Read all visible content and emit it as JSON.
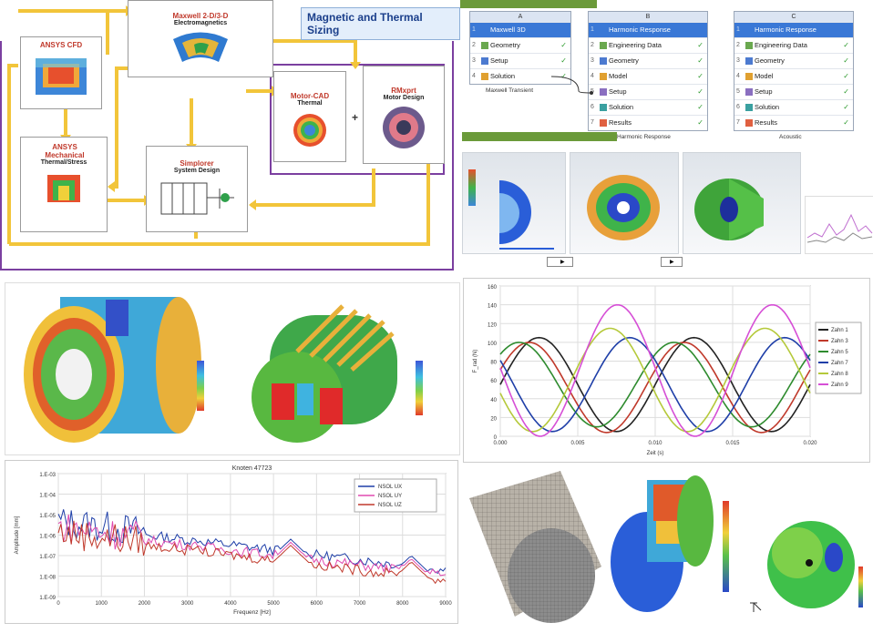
{
  "banner": "Magnetic and Thermal Sizing",
  "flow": {
    "ansys_cfd": {
      "title": "ANSYS CFD"
    },
    "maxwell": {
      "title": "Maxwell 2-D/3-D",
      "sub": "Electromagnetics"
    },
    "ansys_mech": {
      "title": "ANSYS Mechanical",
      "sub": "Thermal/Stress"
    },
    "simplorer": {
      "title": "Simplorer",
      "sub": "System Design"
    },
    "motorcad": {
      "title": "Motor-CAD",
      "sub": "Thermal"
    },
    "rmxprt": {
      "title": "RMxprt",
      "sub": "Motor Design"
    },
    "plus": "+"
  },
  "workbench": {
    "a": {
      "col": "A",
      "rows": [
        {
          "n": "1",
          "label": "Maxwell 3D",
          "check": ""
        },
        {
          "n": "2",
          "label": "Geometry",
          "check": "✓"
        },
        {
          "n": "3",
          "label": "Setup",
          "check": "✓"
        },
        {
          "n": "4",
          "label": "Solution",
          "check": "✓"
        }
      ],
      "caption": "Maxwell Transient"
    },
    "b": {
      "col": "B",
      "rows": [
        {
          "n": "1",
          "label": "Harmonic Response",
          "check": ""
        },
        {
          "n": "2",
          "label": "Engineering Data",
          "check": "✓"
        },
        {
          "n": "3",
          "label": "Geometry",
          "check": "✓"
        },
        {
          "n": "4",
          "label": "Model",
          "check": "✓"
        },
        {
          "n": "5",
          "label": "Setup",
          "check": "✓"
        },
        {
          "n": "6",
          "label": "Solution",
          "check": "✓"
        },
        {
          "n": "7",
          "label": "Results",
          "check": "✓"
        }
      ],
      "caption": "Harmonic Response"
    },
    "c": {
      "col": "C",
      "rows": [
        {
          "n": "1",
          "label": "Harmonic Response",
          "check": ""
        },
        {
          "n": "2",
          "label": "Engineering Data",
          "check": "✓"
        },
        {
          "n": "3",
          "label": "Geometry",
          "check": "✓"
        },
        {
          "n": "4",
          "label": "Model",
          "check": "✓"
        },
        {
          "n": "5",
          "label": "Setup",
          "check": "✓"
        },
        {
          "n": "6",
          "label": "Solution",
          "check": "✓"
        },
        {
          "n": "7",
          "label": "Results",
          "check": "✓"
        }
      ],
      "caption": "Acoustic"
    }
  },
  "chart_force": {
    "chart_data": {
      "type": "line",
      "xlabel": "Zeit (s)",
      "ylabel": "F_rad (N)",
      "xlim": [
        0.0,
        0.02
      ],
      "ylim": [
        0,
        160
      ],
      "xticks": [
        "0.000",
        "0.005",
        "0.010",
        "0.015",
        "0.020"
      ],
      "yticks": [
        "0",
        "20",
        "40",
        "60",
        "80",
        "100",
        "120",
        "140",
        "160"
      ],
      "legend_position": "right",
      "series": [
        {
          "name": "Zahn 1",
          "color": "#222222",
          "phase": 0.0,
          "amp": 50,
          "mean": 55
        },
        {
          "name": "Zahn 3",
          "color": "#c0392b",
          "phase": 0.4,
          "amp": 48,
          "mean": 52
        },
        {
          "name": "Zahn 5",
          "color": "#2e8b2e",
          "phase": 0.8,
          "amp": 45,
          "mean": 55
        },
        {
          "name": "Zahn 7",
          "color": "#1f3fa8",
          "phase": 2.6,
          "amp": 50,
          "mean": 55
        },
        {
          "name": "Zahn 8",
          "color": "#b5c93a",
          "phase": 3.4,
          "amp": 55,
          "mean": 60
        },
        {
          "name": "Zahn 9",
          "color": "#d64fd6",
          "phase": 3.1,
          "amp": 70,
          "mean": 70
        }
      ]
    }
  },
  "chart_spectrum": {
    "chart_data": {
      "type": "line",
      "title": "Knoten 47723",
      "xlabel": "Frequenz [Hz]",
      "ylabel": "Amplitude [mm]",
      "xlim": [
        0,
        9000
      ],
      "ylim_log10": [
        -9,
        -3
      ],
      "xticks": [
        "0",
        "1000",
        "2000",
        "3000",
        "4000",
        "5000",
        "6000",
        "7000",
        "8000",
        "9000"
      ],
      "yticks": [
        "1.E-03",
        "1.E-04",
        "1.E-05",
        "1.E-06",
        "1.E-07",
        "1.E-08",
        "1.E-09"
      ],
      "legend_position": "top-right",
      "series": [
        {
          "name": "NSOL UX",
          "color": "#1f3fa8"
        },
        {
          "name": "NSOL UY",
          "color": "#e04ab0"
        },
        {
          "name": "NSOL UZ",
          "color": "#c0392b"
        }
      ]
    }
  },
  "colors": {
    "flow_arrow": "#f2c53a",
    "frame": "#7b3fa0",
    "title_red": "#c0392b"
  }
}
